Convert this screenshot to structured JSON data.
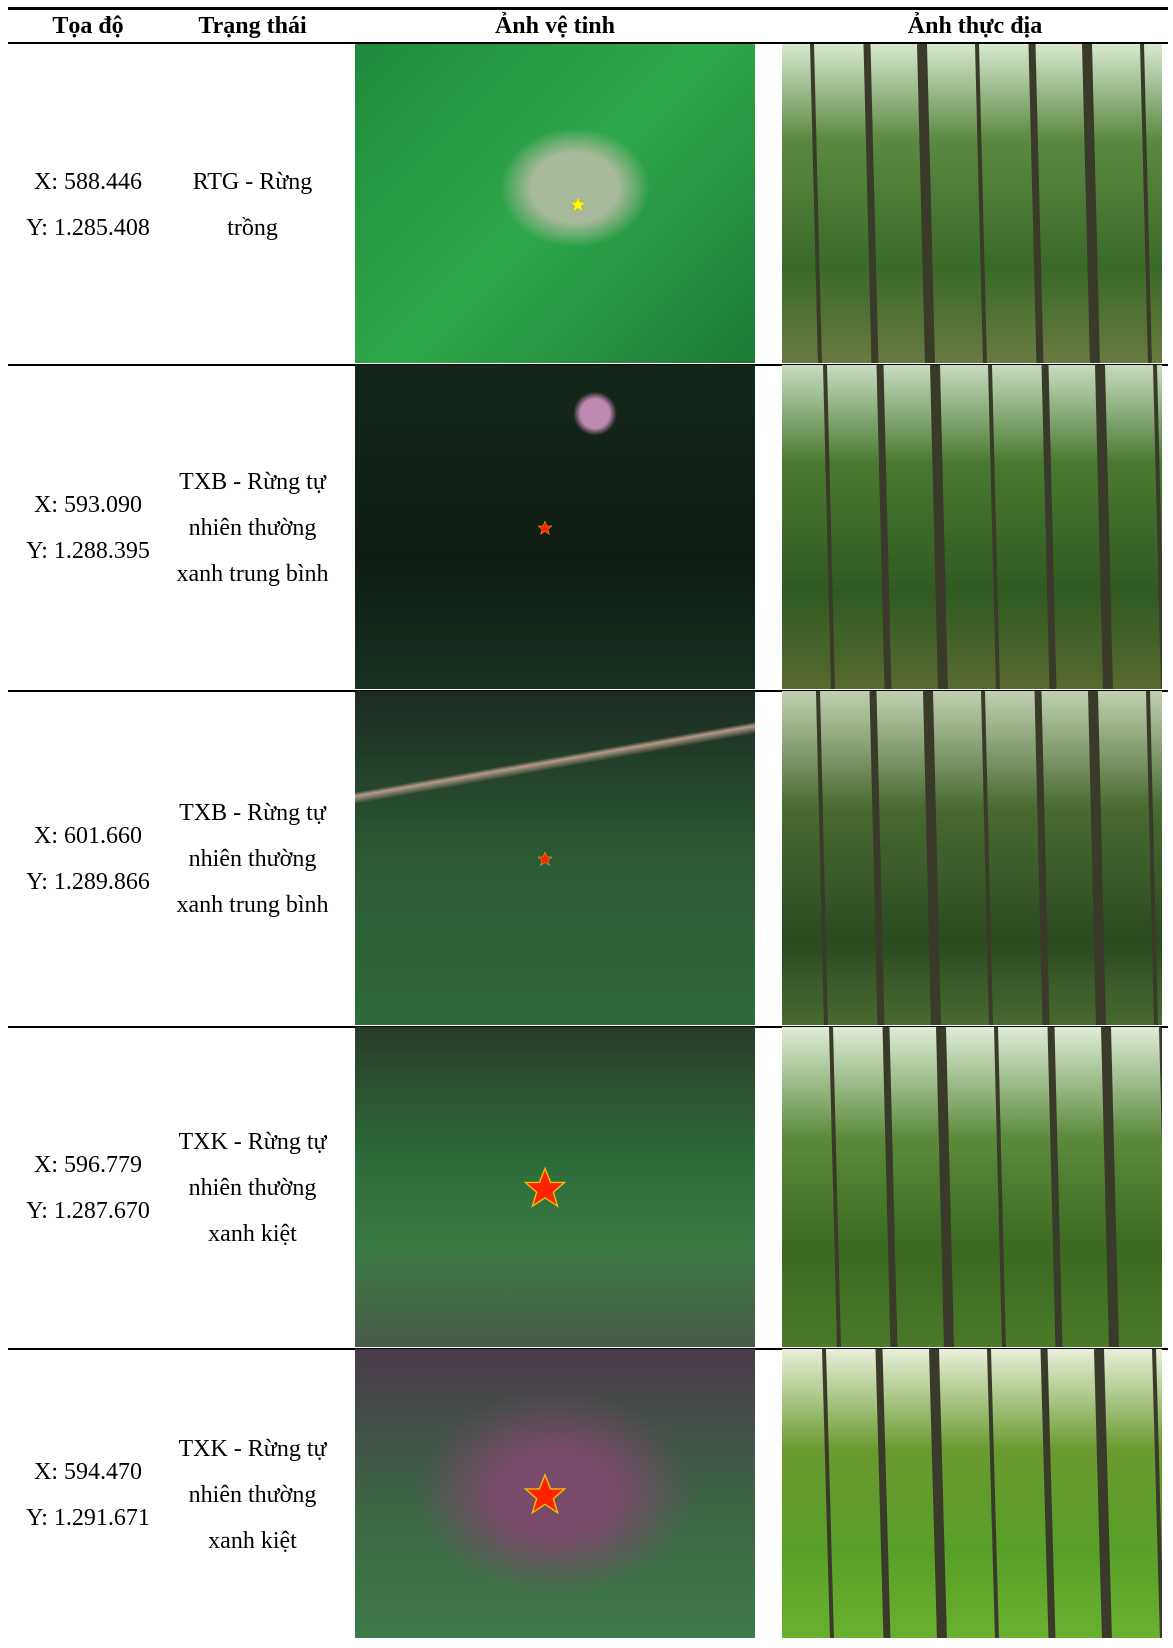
{
  "header": [
    "Tọa độ",
    "Trạng thái",
    "Ảnh vệ tinh",
    "Ảnh thực địa"
  ],
  "rows": [
    {
      "x": "X: 588.446",
      "y": "Y: 1.285.408",
      "status": "RTG - Rừng trồng"
    },
    {
      "x": "X: 593.090",
      "y": "Y: 1.288.395",
      "status": "TXB - Rừng tự nhiên thường xanh trung bình"
    },
    {
      "x": "X: 601.660",
      "y": "Y: 1.289.866",
      "status": "TXB - Rừng tự nhiên thường xanh trung bình"
    },
    {
      "x": "X: 596.779",
      "y": "Y: 1.287.670",
      "status": "TXK - Rừng tự nhiên thường xanh kiệt"
    },
    {
      "x": "X: 594.470",
      "y": "Y: 1.291.671",
      "status": "TXK - Rừng tự nhiên thường xanh kiệt"
    }
  ]
}
